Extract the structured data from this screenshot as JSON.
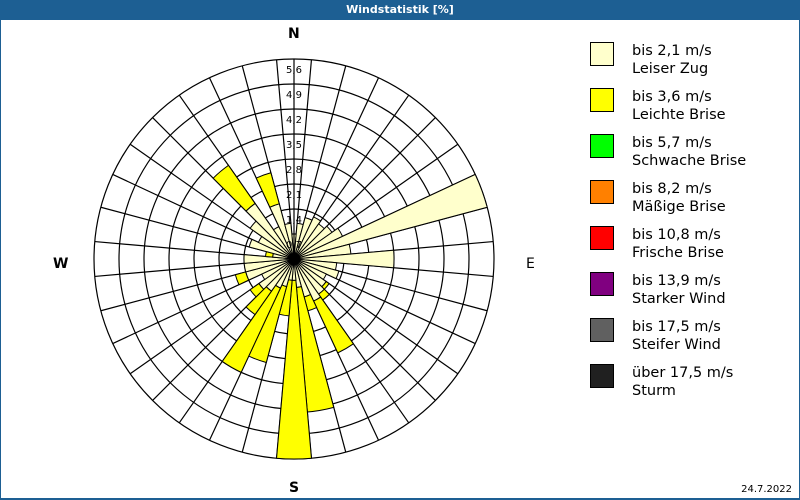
{
  "title": "Windstatistik [%]",
  "date": "24.7.2022",
  "compass": {
    "N": "N",
    "E": "E",
    "S": "S",
    "W": "W"
  },
  "legend": [
    {
      "color": "#ffffcc",
      "line1": "bis 2,1 m/s",
      "line2": "Leiser Zug"
    },
    {
      "color": "#ffff00",
      "line1": "bis 3,6 m/s",
      "line2": "Leichte Brise"
    },
    {
      "color": "#00ff00",
      "line1": "bis 5,7 m/s",
      "line2": "Schwache Brise"
    },
    {
      "color": "#ff8000",
      "line1": "bis 8,2 m/s",
      "line2": "Mäßige Brise"
    },
    {
      "color": "#ff0000",
      "line1": "bis 10,8 m/s",
      "line2": "Frische Brise"
    },
    {
      "color": "#800080",
      "line1": "bis 13,9 m/s",
      "line2": "Starker Wind"
    },
    {
      "color": "#606060",
      "line1": "bis 17,5 m/s",
      "line2": "Steifer Wind"
    },
    {
      "color": "#202020",
      "line1": "über 17,5 m/s",
      "line2": "Sturm"
    }
  ],
  "chart_data": {
    "type": "polar-stacked-bar (wind rose)",
    "title": "Windstatistik [%]",
    "radial_ticks": [
      "0,7",
      "1,4",
      "2,1",
      "2,8",
      "3,5",
      "4,2",
      "4,9",
      "5,6"
    ],
    "rmax": 5.6,
    "directions_deg": [
      0,
      10,
      20,
      30,
      40,
      50,
      60,
      70,
      80,
      90,
      100,
      110,
      120,
      130,
      140,
      150,
      160,
      170,
      180,
      190,
      200,
      210,
      220,
      230,
      240,
      250,
      260,
      270,
      280,
      290,
      300,
      310,
      320,
      330,
      340,
      350
    ],
    "series": [
      {
        "name": "bis 2,1 m/s Leiser Zug",
        "color": "#ffffcc",
        "values": [
          0.7,
          1.0,
          1.2,
          1.3,
          1.2,
          1.3,
          1.5,
          5.6,
          1.6,
          2.8,
          1.2,
          1.3,
          1.0,
          1.1,
          1.2,
          1.3,
          1.1,
          0.8,
          0.6,
          0.6,
          0.8,
          0.9,
          1.1,
          1.2,
          1.0,
          1.4,
          1.4,
          1.4,
          0.6,
          1.3,
          1.1,
          1.5,
          1.9,
          1.0,
          1.6,
          1.0
        ]
      },
      {
        "name": "bis 3,6 m/s Leichte Brise",
        "color": "#ffff00",
        "values": [
          0,
          0,
          0,
          0,
          0,
          0,
          0,
          0,
          0,
          0,
          0,
          0,
          0,
          0.1,
          0.2,
          1.6,
          0.4,
          3.5,
          5.0,
          1.0,
          2.2,
          2.6,
          0.8,
          0.3,
          0,
          0.3,
          0,
          0,
          0.2,
          0,
          0,
          0,
          1.3,
          0,
          0.9,
          0
        ]
      }
    ],
    "legend_position": "right"
  }
}
